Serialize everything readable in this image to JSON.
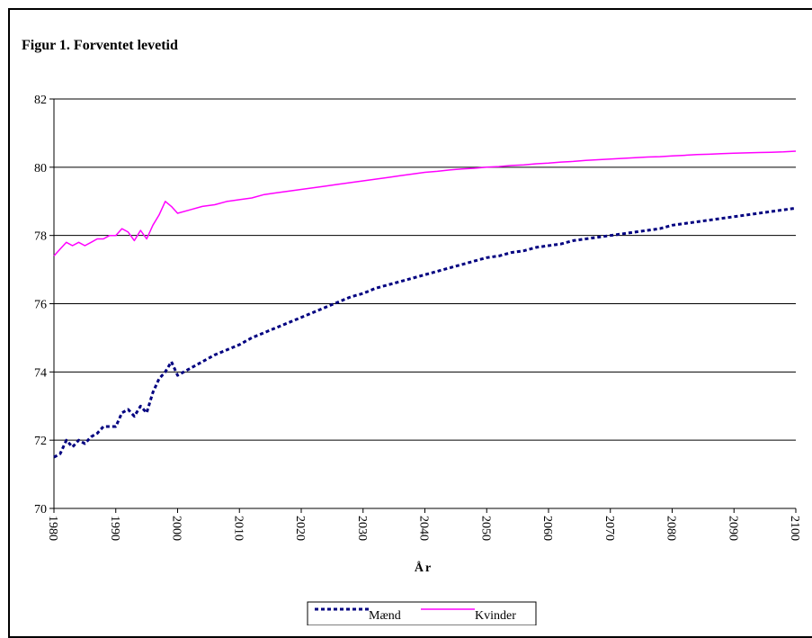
{
  "chart_data": {
    "type": "line",
    "title": "Figur 1. Forventet levetid",
    "xlabel": "År",
    "ylabel": "",
    "xlim": [
      1980,
      2100
    ],
    "ylim": [
      70,
      82
    ],
    "y_ticks": [
      "70",
      "72",
      "74",
      "76",
      "78",
      "80",
      "82"
    ],
    "x_ticks": [
      "1980",
      "1990",
      "2000",
      "2010",
      "2020",
      "2030",
      "2040",
      "2050",
      "2060",
      "2070",
      "2080",
      "2090",
      "2100"
    ],
    "grid": "horizontal",
    "legend_position": "bottom",
    "series": [
      {
        "name": "Mænd",
        "color": "#000080",
        "style": "dashed",
        "x": [
          1980,
          1981,
          1982,
          1983,
          1984,
          1985,
          1986,
          1987,
          1988,
          1989,
          1990,
          1991,
          1992,
          1993,
          1994,
          1995,
          1996,
          1997,
          1998,
          1999,
          2000,
          2002,
          2004,
          2006,
          2008,
          2010,
          2012,
          2014,
          2016,
          2018,
          2020,
          2022,
          2024,
          2026,
          2028,
          2030,
          2032,
          2034,
          2036,
          2038,
          2040,
          2042,
          2044,
          2046,
          2048,
          2050,
          2052,
          2054,
          2056,
          2058,
          2060,
          2062,
          2064,
          2066,
          2068,
          2070,
          2072,
          2074,
          2076,
          2078,
          2080,
          2082,
          2084,
          2086,
          2088,
          2090,
          2092,
          2094,
          2096,
          2098,
          2100
        ],
        "values": [
          71.5,
          71.6,
          72.0,
          71.8,
          72.0,
          71.9,
          72.1,
          72.2,
          72.4,
          72.4,
          72.4,
          72.8,
          72.9,
          72.7,
          73.0,
          72.8,
          73.4,
          73.8,
          74.0,
          74.3,
          73.9,
          74.1,
          74.3,
          74.5,
          74.65,
          74.8,
          75.0,
          75.15,
          75.3,
          75.45,
          75.6,
          75.75,
          75.9,
          76.05,
          76.2,
          76.3,
          76.45,
          76.55,
          76.65,
          76.75,
          76.85,
          76.95,
          77.05,
          77.15,
          77.25,
          77.35,
          77.4,
          77.5,
          77.55,
          77.65,
          77.7,
          77.75,
          77.85,
          77.9,
          77.95,
          78.0,
          78.05,
          78.1,
          78.15,
          78.2,
          78.3,
          78.35,
          78.4,
          78.45,
          78.5,
          78.55,
          78.6,
          78.65,
          78.7,
          78.75,
          78.8
        ]
      },
      {
        "name": "Kvinder",
        "color": "#FF00FF",
        "style": "solid",
        "x": [
          1980,
          1981,
          1982,
          1983,
          1984,
          1985,
          1986,
          1987,
          1988,
          1989,
          1990,
          1991,
          1992,
          1993,
          1994,
          1995,
          1996,
          1997,
          1998,
          1999,
          2000,
          2002,
          2004,
          2006,
          2008,
          2010,
          2012,
          2014,
          2016,
          2018,
          2020,
          2022,
          2024,
          2026,
          2028,
          2030,
          2032,
          2034,
          2036,
          2038,
          2040,
          2042,
          2044,
          2046,
          2048,
          2050,
          2052,
          2054,
          2056,
          2058,
          2060,
          2062,
          2064,
          2066,
          2068,
          2070,
          2072,
          2074,
          2076,
          2078,
          2080,
          2082,
          2084,
          2086,
          2088,
          2090,
          2092,
          2094,
          2096,
          2098,
          2100
        ],
        "values": [
          77.4,
          77.6,
          77.8,
          77.7,
          77.8,
          77.7,
          77.8,
          77.9,
          77.9,
          78.0,
          78.0,
          78.2,
          78.1,
          77.85,
          78.15,
          77.9,
          78.3,
          78.6,
          79.0,
          78.85,
          78.65,
          78.75,
          78.85,
          78.9,
          79.0,
          79.05,
          79.1,
          79.2,
          79.25,
          79.3,
          79.35,
          79.4,
          79.45,
          79.5,
          79.55,
          79.6,
          79.65,
          79.7,
          79.75,
          79.8,
          79.85,
          79.88,
          79.92,
          79.95,
          79.97,
          80.0,
          80.02,
          80.05,
          80.07,
          80.1,
          80.12,
          80.15,
          80.17,
          80.2,
          80.22,
          80.24,
          80.26,
          80.28,
          80.3,
          80.31,
          80.33,
          80.35,
          80.37,
          80.38,
          80.4,
          80.41,
          80.42,
          80.43,
          80.44,
          80.45,
          80.47
        ]
      }
    ]
  }
}
